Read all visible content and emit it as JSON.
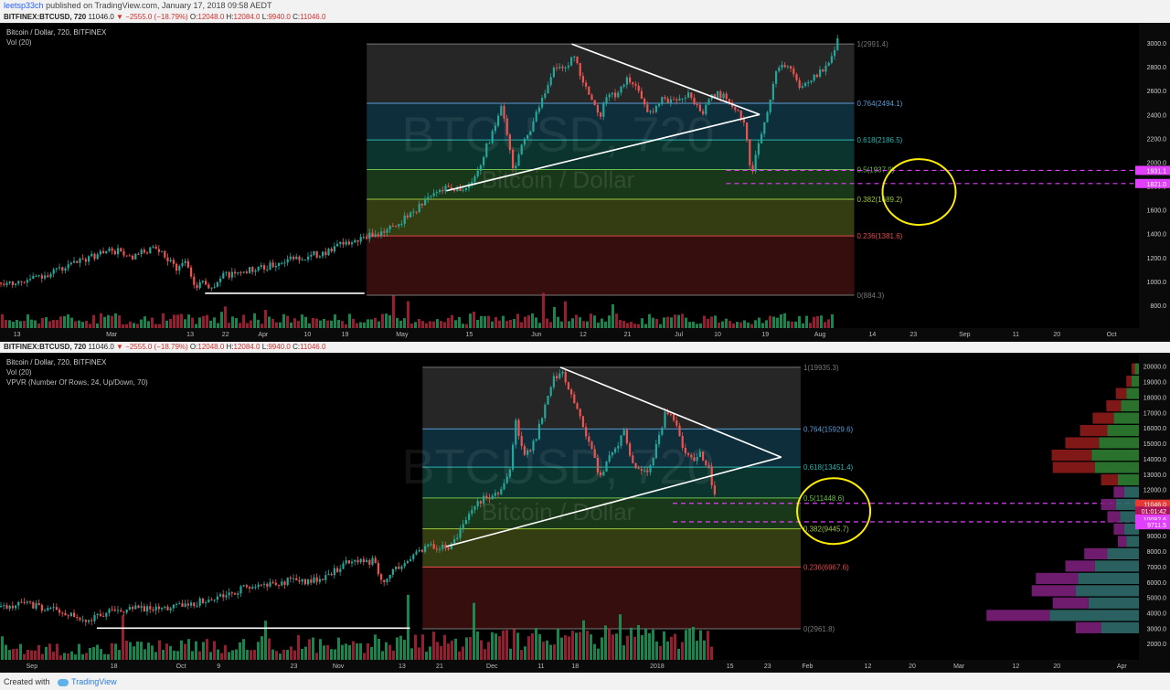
{
  "meta": {
    "author": "leetsp33ch",
    "published": "published on TradingView.com, January 17, 2018 09:58 AEDT",
    "created_with": "Created with",
    "brand": "TradingView"
  },
  "header": {
    "symbol": "BITFINEX:BTCUSD, 720",
    "price": "11046.0",
    "change": "−2555.0 (−18.79%)",
    "o_label": "O:",
    "o": "12048.0",
    "h_label": "H:",
    "h": "12084.0",
    "l_label": "L:",
    "l": "9940.0",
    "c_label": "C:",
    "c": "11046.0"
  },
  "colors": {
    "background": "#000000",
    "up": "#26a69a",
    "down": "#ef5350",
    "volume_up": "#1b9c5a",
    "volume_down": "#b2223a",
    "fib_line_colors": [
      "#787878",
      "#5b9bd5",
      "#2bb5b0",
      "#6abf4b",
      "#9bc53d",
      "#e24a4a",
      "#787878"
    ],
    "fib_band_colors": [
      "#2a2a2a",
      "#0e3340",
      "#0c3a33",
      "#1c3d1c",
      "#3a4414",
      "#3d1010"
    ],
    "pink_dash": "#e040fb",
    "circle": "#ffee00",
    "trend": "#ffffff"
  },
  "chart_data": [
    {
      "type": "line",
      "title": "Bitcoin / Dollar, 720, BITFINEX",
      "indicators": [
        "Vol (20)"
      ],
      "watermark": [
        "BTCUSD, 720",
        "Bitcoin / Dollar"
      ],
      "ylim": [
        700,
        3100
      ],
      "yticks": [
        800.0,
        1000.0,
        1200.0,
        1400.0,
        1600.0,
        1800.0,
        2000.0,
        2200.0,
        2400.0,
        2600.0,
        2800.0,
        3000.0
      ],
      "xticks": [
        "13",
        "Mar",
        "13",
        "22",
        "Apr",
        "10",
        "19",
        "May",
        "15",
        "Jun",
        "12",
        "21",
        "Jul",
        "10",
        "19",
        "Aug",
        "14",
        "23",
        "Sep",
        "11",
        "20",
        "Oct"
      ],
      "xdomain": [
        0,
        100
      ],
      "xtick_pos": [
        1.5,
        9.8,
        16.7,
        19.8,
        23.1,
        27.0,
        30.3,
        35.3,
        41.2,
        47.1,
        51.2,
        55.1,
        59.6,
        63.0,
        67.2,
        72.0,
        76.6,
        80.2,
        84.7,
        89.2,
        92.8,
        97.6
      ],
      "price_points": [
        [
          0,
          990
        ],
        [
          2,
          1000
        ],
        [
          4,
          1060
        ],
        [
          6,
          1130
        ],
        [
          8,
          1210
        ],
        [
          9.5,
          1260
        ],
        [
          10.5,
          1250
        ],
        [
          11.5,
          1180
        ],
        [
          12.5,
          1250
        ],
        [
          13.5,
          1270
        ],
        [
          14.5,
          1200
        ],
        [
          15.5,
          1110
        ],
        [
          16.2,
          1180
        ],
        [
          17,
          960
        ],
        [
          17.8,
          1010
        ],
        [
          18.5,
          930
        ],
        [
          19.5,
          1050
        ],
        [
          21,
          1080
        ],
        [
          23,
          1110
        ],
        [
          25,
          1180
        ],
        [
          27,
          1210
        ],
        [
          28.5,
          1250
        ],
        [
          30,
          1310
        ],
        [
          31.5,
          1350
        ],
        [
          33,
          1400
        ],
        [
          34.5,
          1460
        ],
        [
          36,
          1570
        ],
        [
          37.5,
          1700
        ],
        [
          39,
          1800
        ],
        [
          40.5,
          1770
        ],
        [
          41.5,
          1840
        ],
        [
          42.5,
          2100
        ],
        [
          43.5,
          2330
        ],
        [
          44,
          2480
        ],
        [
          45,
          1920
        ],
        [
          45.7,
          2150
        ],
        [
          46.5,
          2270
        ],
        [
          47.5,
          2520
        ],
        [
          48.5,
          2800
        ],
        [
          49.5,
          2760
        ],
        [
          50.3,
          2900
        ],
        [
          51,
          2680
        ],
        [
          51.7,
          2580
        ],
        [
          52.5,
          2360
        ],
        [
          53.3,
          2600
        ],
        [
          54,
          2550
        ],
        [
          55,
          2700
        ],
        [
          56,
          2580
        ],
        [
          57,
          2400
        ],
        [
          58,
          2520
        ],
        [
          59.3,
          2530
        ],
        [
          60.5,
          2580
        ],
        [
          61.5,
          2400
        ],
        [
          62.5,
          2570
        ],
        [
          63.5,
          2560
        ],
        [
          64.5,
          2450
        ],
        [
          65.3,
          2300
        ],
        [
          65.9,
          1880
        ],
        [
          66.4,
          2120
        ],
        [
          66.9,
          2300
        ],
        [
          67.5,
          2500
        ],
        [
          68,
          2780
        ],
        [
          69,
          2820
        ],
        [
          70,
          2650
        ],
        [
          71,
          2680
        ],
        [
          72,
          2760
        ],
        [
          72.8,
          2820
        ],
        [
          73.5,
          3050
        ]
      ],
      "volume_level": "low",
      "fib": [
        {
          "level": "1",
          "value": 2991.4,
          "label": "1(2991.4)"
        },
        {
          "level": "0.764",
          "value": 2494.1,
          "label": "0.764(2494.1)"
        },
        {
          "level": "0.618",
          "value": 2186.5,
          "label": "0.618(2186.5)"
        },
        {
          "level": "0.5",
          "value": 1937.9,
          "label": "0.5(1937.9)"
        },
        {
          "level": "0.382",
          "value": 1689.2,
          "label": "0.382(1689.2)"
        },
        {
          "level": "0.236",
          "value": 1381.6,
          "label": "0.236(1381.6)"
        },
        {
          "level": "0",
          "value": 884.3,
          "label": "0(884.3)"
        }
      ],
      "fib_x": [
        32.2,
        75.0
      ],
      "trend_lines": [
        [
          [
            50.2,
            2991.4
          ],
          [
            66.7,
            2400
          ]
        ],
        [
          [
            39.2,
            1760
          ],
          [
            66.7,
            2400
          ]
        ],
        [
          [
            18.0,
            900
          ],
          [
            32.0,
            900
          ]
        ]
      ],
      "dashed_levels": [
        1931.1,
        1821.0
      ],
      "price_labels": [
        "1931.1",
        "1821.0"
      ],
      "circle_center": [
        80.7,
        1750
      ]
    },
    {
      "type": "line",
      "title": "Bitcoin / Dollar, 720, BITFINEX",
      "indicators": [
        "Vol (20)",
        "VPVR (Number Of Rows, 24, Up/Down, 70)"
      ],
      "watermark": [
        "BTCUSD, 720",
        "Bitcoin / Dollar"
      ],
      "ylim": [
        1300,
        20400
      ],
      "yticks": [
        2000.0,
        3000.0,
        4000.0,
        5000.0,
        6000.0,
        7000.0,
        8000.0,
        9000.0,
        10000.0,
        11000.0,
        12000.0,
        13000.0,
        14000.0,
        15000.0,
        16000.0,
        17000.0,
        18000.0,
        19000.0,
        20000.0
      ],
      "xticks": [
        "Sep",
        "18",
        "Oct",
        "9",
        "23",
        "Nov",
        "13",
        "21",
        "Dec",
        "11",
        "18",
        "2018",
        "15",
        "23",
        "Feb",
        "12",
        "20",
        "Mar",
        "12",
        "20",
        "Apr"
      ],
      "xdomain": [
        0,
        100
      ],
      "xtick_pos": [
        2.8,
        10.0,
        15.9,
        19.2,
        25.8,
        29.7,
        35.3,
        38.6,
        43.2,
        47.5,
        50.5,
        57.7,
        64.1,
        67.4,
        70.9,
        76.2,
        80.1,
        84.2,
        89.2,
        92.8,
        98.5
      ],
      "price_points": [
        [
          0,
          4400
        ],
        [
          2,
          4600
        ],
        [
          4,
          4300
        ],
        [
          6,
          3900
        ],
        [
          7.5,
          3300
        ],
        [
          8.5,
          3900
        ],
        [
          10,
          4100
        ],
        [
          12,
          4300
        ],
        [
          14,
          4350
        ],
        [
          16,
          4500
        ],
        [
          18,
          4800
        ],
        [
          20,
          5300
        ],
        [
          22,
          5700
        ],
        [
          24,
          5900
        ],
        [
          25.5,
          6100
        ],
        [
          27,
          6000
        ],
        [
          28.5,
          6300
        ],
        [
          30,
          7100
        ],
        [
          31.5,
          7500
        ],
        [
          32.7,
          7300
        ],
        [
          33.6,
          5900
        ],
        [
          34.3,
          6700
        ],
        [
          35.5,
          7100
        ],
        [
          36.5,
          8100
        ],
        [
          38,
          8300
        ],
        [
          39.5,
          8200
        ],
        [
          40.5,
          9500
        ],
        [
          41.5,
          10900
        ],
        [
          42.5,
          11500
        ],
        [
          43.2,
          11700
        ],
        [
          44,
          11800
        ],
        [
          44.7,
          13500
        ],
        [
          45.2,
          16500
        ],
        [
          46,
          14000
        ],
        [
          47,
          15500
        ],
        [
          47.7,
          17300
        ],
        [
          48.6,
          19300
        ],
        [
          49.3,
          19800
        ],
        [
          49.9,
          18300
        ],
        [
          50.5,
          17500
        ],
        [
          51.2,
          15800
        ],
        [
          52,
          14500
        ],
        [
          52.6,
          12600
        ],
        [
          53.2,
          14100
        ],
        [
          54,
          14700
        ],
        [
          54.7,
          15800
        ],
        [
          55.5,
          13500
        ],
        [
          56.2,
          13400
        ],
        [
          57,
          13300
        ],
        [
          57.7,
          15300
        ],
        [
          58.4,
          17200
        ],
        [
          59,
          16800
        ],
        [
          59.8,
          14800
        ],
        [
          60.7,
          14000
        ],
        [
          61.5,
          14300
        ],
        [
          62.2,
          13300
        ],
        [
          62.5,
          12000
        ],
        [
          62.8,
          11046
        ]
      ],
      "volume_level": "high",
      "fib": [
        {
          "level": "1",
          "value": 19935.3,
          "label": "1(19935.3)"
        },
        {
          "level": "0.764",
          "value": 15929.6,
          "label": "0.764(15929.6)"
        },
        {
          "level": "0.618",
          "value": 13451.4,
          "label": "0.618(13451.4)"
        },
        {
          "level": "0.5",
          "value": 11448.6,
          "label": "0.5(11448.6)"
        },
        {
          "level": "0.382",
          "value": 9445.7,
          "label": "0.382(9445.7)"
        },
        {
          "level": "0.236",
          "value": 6967.6,
          "label": "0.236(6967.6)"
        },
        {
          "level": "0",
          "value": 2961.8,
          "label": "0(2961.8)"
        }
      ],
      "fib_x": [
        37.1,
        70.3
      ],
      "trend_lines": [
        [
          [
            49.2,
            19935
          ],
          [
            68.6,
            14100
          ]
        ],
        [
          [
            39.2,
            8300
          ],
          [
            68.6,
            14100
          ]
        ],
        [
          [
            8.5,
            3000
          ],
          [
            36.0,
            3000
          ]
        ]
      ],
      "dashed_levels": [
        11100,
        9900
      ],
      "price_labels": [
        "11046.0",
        "01:01:42",
        "10082.6",
        "9711.5"
      ],
      "circle_center": [
        73.2,
        10600
      ],
      "vpvr_rows": [
        {
          "price": 19800,
          "up": 4,
          "down": 3
        },
        {
          "price": 19000,
          "up": 7,
          "down": 5
        },
        {
          "price": 18200,
          "up": 12,
          "down": 10
        },
        {
          "price": 17400,
          "up": 17,
          "down": 14
        },
        {
          "price": 16600,
          "up": 24,
          "down": 20
        },
        {
          "price": 15800,
          "up": 30,
          "down": 26
        },
        {
          "price": 15000,
          "up": 38,
          "down": 32
        },
        {
          "price": 14200,
          "up": 45,
          "down": 38
        },
        {
          "price": 13400,
          "up": 42,
          "down": 40
        },
        {
          "price": 12600,
          "up": 20,
          "down": 16
        },
        {
          "price": 11800,
          "up": 14,
          "down": 10
        },
        {
          "price": 11000,
          "up": 22,
          "down": 14
        },
        {
          "price": 10200,
          "up": 18,
          "down": 12
        },
        {
          "price": 9400,
          "up": 14,
          "down": 10
        },
        {
          "price": 8600,
          "up": 12,
          "down": 8
        },
        {
          "price": 7800,
          "up": 30,
          "down": 22
        },
        {
          "price": 7000,
          "up": 42,
          "down": 28
        },
        {
          "price": 6200,
          "up": 58,
          "down": 40
        },
        {
          "price": 5400,
          "up": 60,
          "down": 42
        },
        {
          "price": 4600,
          "up": 48,
          "down": 34
        },
        {
          "price": 3800,
          "up": 85,
          "down": 60
        },
        {
          "price": 3000,
          "up": 36,
          "down": 24
        }
      ]
    }
  ]
}
